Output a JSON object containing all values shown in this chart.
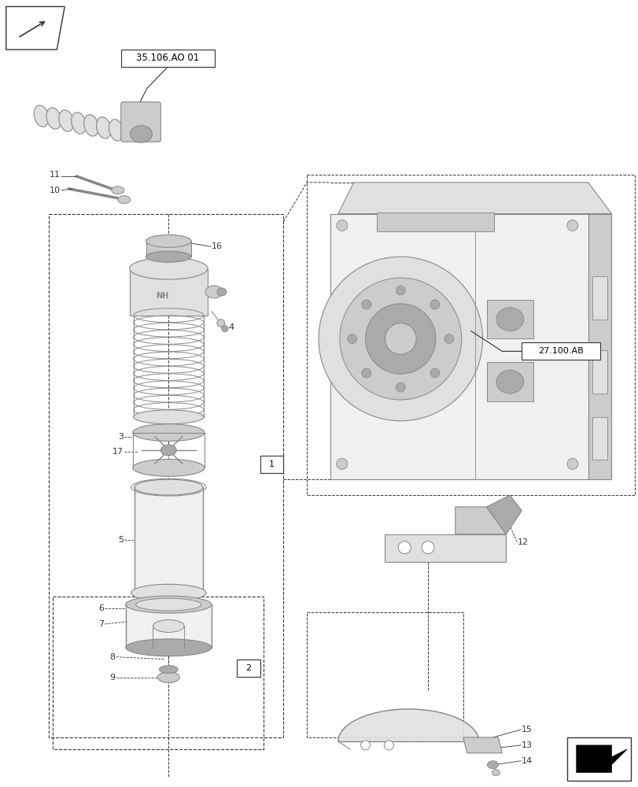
{
  "bg_color": "#ffffff",
  "fig_width": 8.12,
  "fig_height": 10.0,
  "dpi": 100,
  "line_color": "#333333",
  "gray1": "#888888",
  "gray2": "#aaaaaa",
  "gray3": "#cccccc",
  "gray4": "#e0e0e0",
  "gray5": "#f0f0f0",
  "ref1_text": "35.106.AO 01",
  "ref2_text": "27.100.AB",
  "box1_text": "1",
  "box2_text": "2"
}
